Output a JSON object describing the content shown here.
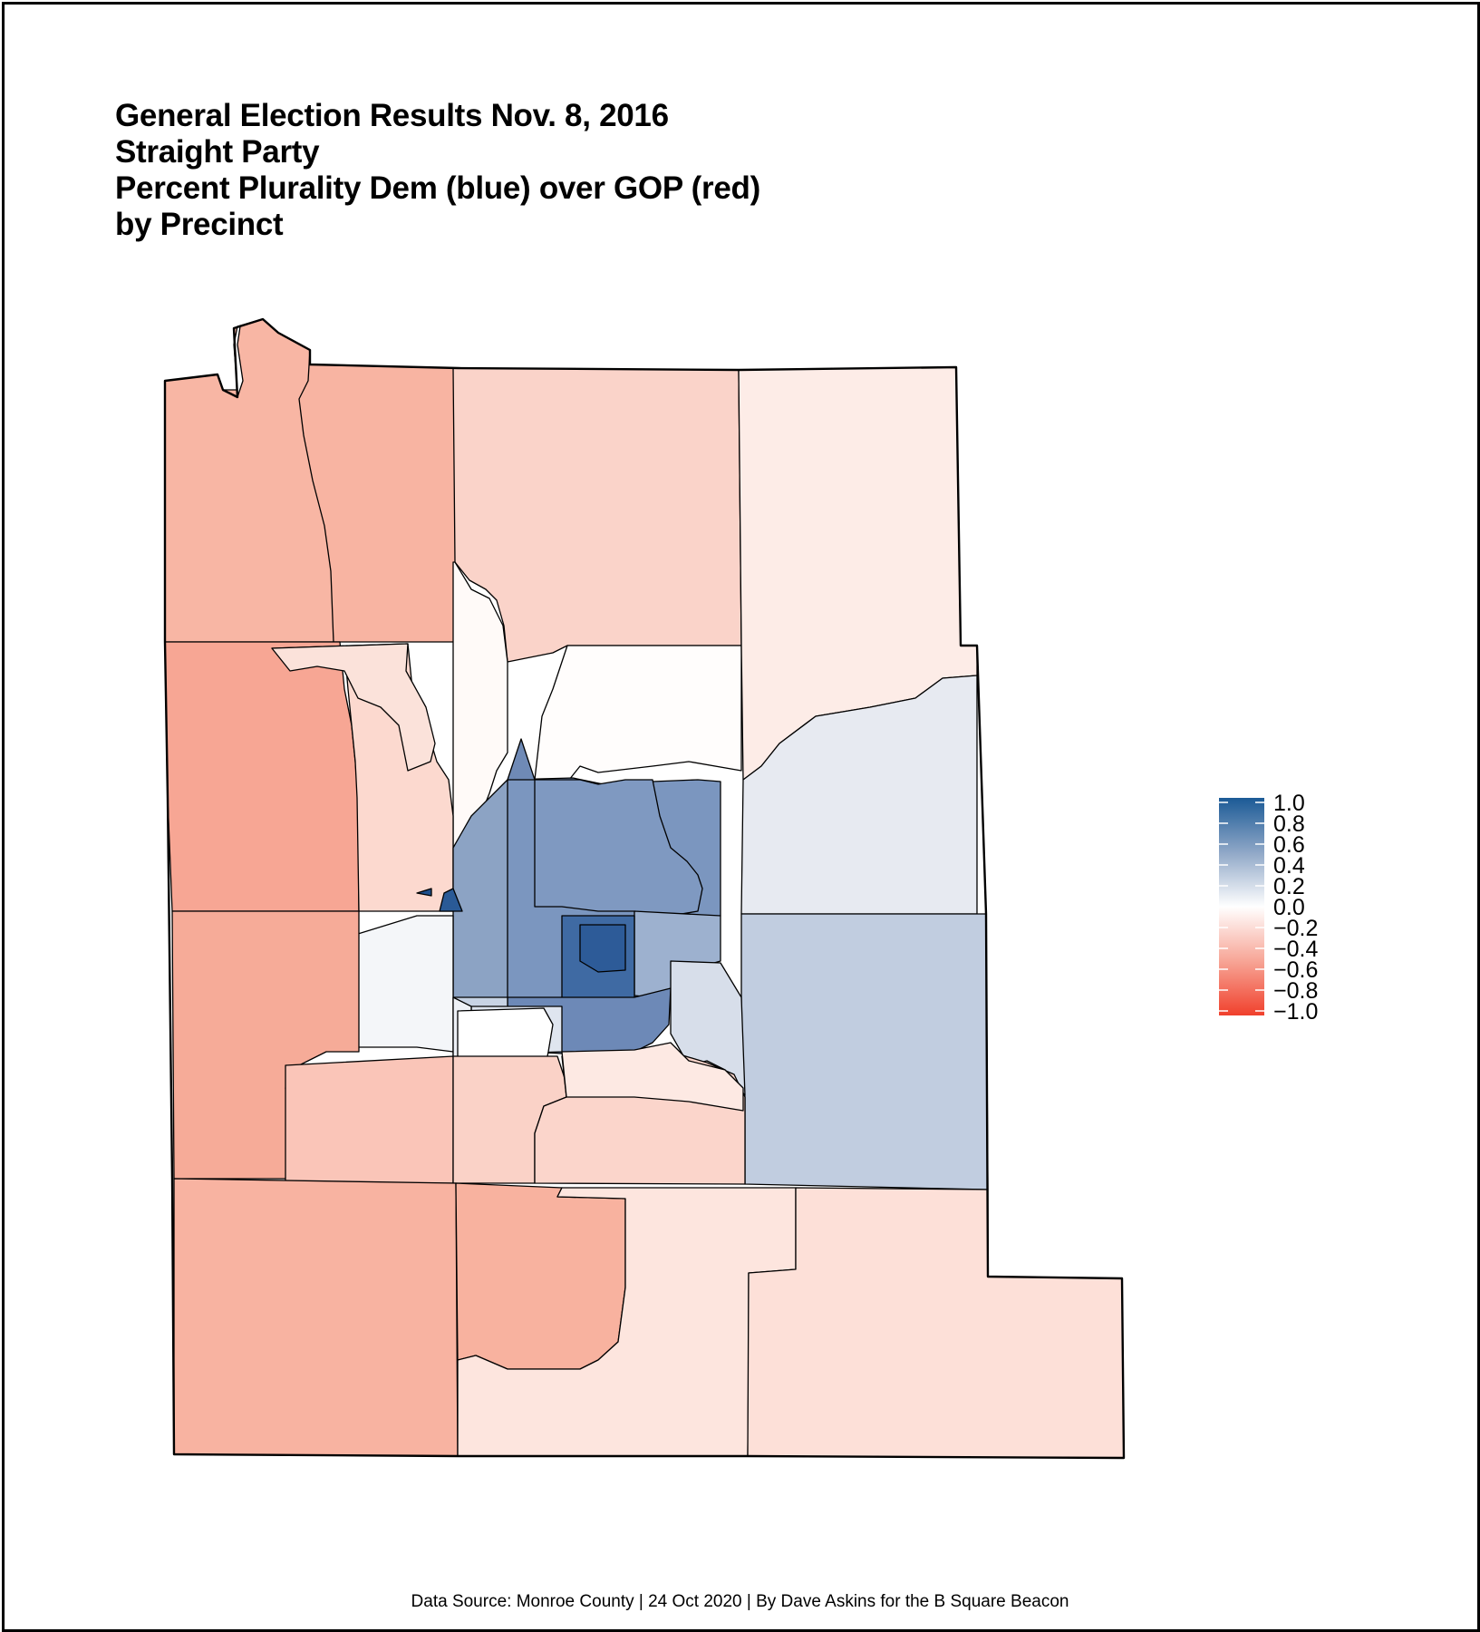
{
  "title": {
    "line1": "General Election Results Nov. 8, 2016",
    "line2": "Straight Party",
    "line3": "Percent Plurality Dem (blue) over GOP (red)",
    "line4": "by Precinct"
  },
  "legend": {
    "min": -1.0,
    "max": 1.0,
    "colors": {
      "high": "#1b5a96",
      "mid": "#ffffff",
      "low": "#f0402c"
    },
    "labels": [
      "1.0",
      "0.8",
      "0.6",
      "0.4",
      "0.2",
      "0.0",
      "−0.2",
      "−0.4",
      "−0.6",
      "−0.8",
      "−1.0"
    ]
  },
  "source": "Data Source: Monroe County | 24 Oct 2020 | By Dave Askins for the B Square Beacon"
}
